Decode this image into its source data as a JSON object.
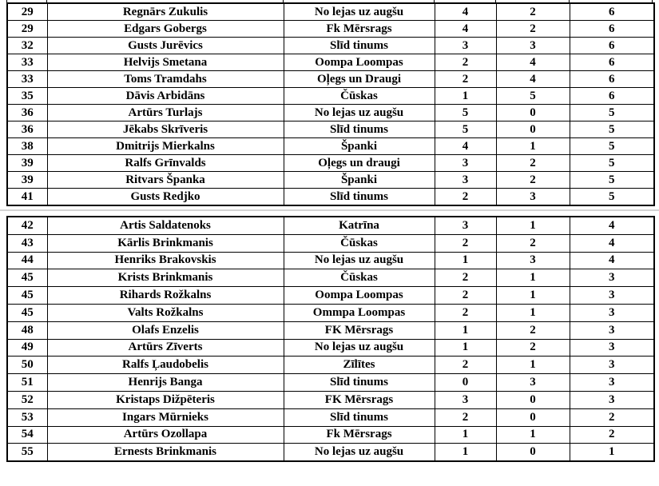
{
  "document": {
    "background_color": "#ffffff",
    "table_border_color": "#000000",
    "page_break_line_color": "#d4d4d4"
  },
  "table": {
    "sections": [
      {
        "rows": [
          [
            "29",
            "Regnārs Zukulis",
            "No lejas uz augšu",
            "4",
            "2",
            "6"
          ],
          [
            "29",
            "Edgars Gobergs",
            "Fk Mērsrags",
            "4",
            "2",
            "6"
          ],
          [
            "32",
            "Gusts Jurēvics",
            "Slīd tinums",
            "3",
            "3",
            "6"
          ],
          [
            "33",
            "Helvijs Smetana",
            "Oompa Loompas",
            "2",
            "4",
            "6"
          ],
          [
            "33",
            "Toms Tramdahs",
            "Oļegs un Draugi",
            "2",
            "4",
            "6"
          ],
          [
            "35",
            "Dāvis Arbidāns",
            "Čūskas",
            "1",
            "5",
            "6"
          ],
          [
            "36",
            "Artūrs Turlajs",
            "No lejas uz augšu",
            "5",
            "0",
            "5"
          ],
          [
            "36",
            "Jēkabs Skrīveris",
            "Slīd tinums",
            "5",
            "0",
            "5"
          ],
          [
            "38",
            "Dmitrijs Mierkalns",
            "Španki",
            "4",
            "1",
            "5"
          ],
          [
            "39",
            "Ralfs Grīnvalds",
            "Oļegs un draugi",
            "3",
            "2",
            "5"
          ],
          [
            "39",
            "Ritvars Španka",
            "Španki",
            "3",
            "2",
            "5"
          ],
          [
            "41",
            "Gusts Redjko",
            "Slīd tinums",
            "2",
            "3",
            "5"
          ]
        ]
      },
      {
        "rows": [
          [
            "42",
            "Artis Saldatenoks",
            "Katrīna",
            "3",
            "1",
            "4"
          ],
          [
            "43",
            "Kārlis Brinkmanis",
            "Čūskas",
            "2",
            "2",
            "4"
          ],
          [
            "44",
            "Henriks Brakovskis",
            "No lejas uz augšu",
            "1",
            "3",
            "4"
          ],
          [
            "45",
            "Krists Brinkmanis",
            "Čūskas",
            "2",
            "1",
            "3"
          ],
          [
            "45",
            "Rihards Rožkalns",
            "Oompa Loompas",
            "2",
            "1",
            "3"
          ],
          [
            "45",
            "Valts Rožkalns",
            "Ommpa Loompas",
            "2",
            "1",
            "3"
          ],
          [
            "48",
            "Olafs Enzelis",
            "FK Mērsrags",
            "1",
            "2",
            "3"
          ],
          [
            "49",
            "Artūrs Zīverts",
            "No lejas uz augšu",
            "1",
            "2",
            "3"
          ],
          [
            "50",
            "Ralfs Ļaudobelis",
            "Zīlītes",
            "2",
            "1",
            "3"
          ],
          [
            "51",
            "Henrijs Banga",
            "Slīd tinums",
            "0",
            "3",
            "3"
          ],
          [
            "52",
            "Kristaps Dižpēteris",
            "FK Mērsrags",
            "3",
            "0",
            "3"
          ],
          [
            "53",
            "Ingars Mūrnieks",
            "Slīd tinums",
            "2",
            "0",
            "2"
          ],
          [
            "54",
            "Artūrs Ozollapa",
            "Fk Mērsrags",
            "1",
            "1",
            "2"
          ],
          [
            "55",
            "Ernests Brinkmanis",
            "No lejas uz augšu",
            "1",
            "0",
            "1"
          ]
        ]
      }
    ]
  }
}
